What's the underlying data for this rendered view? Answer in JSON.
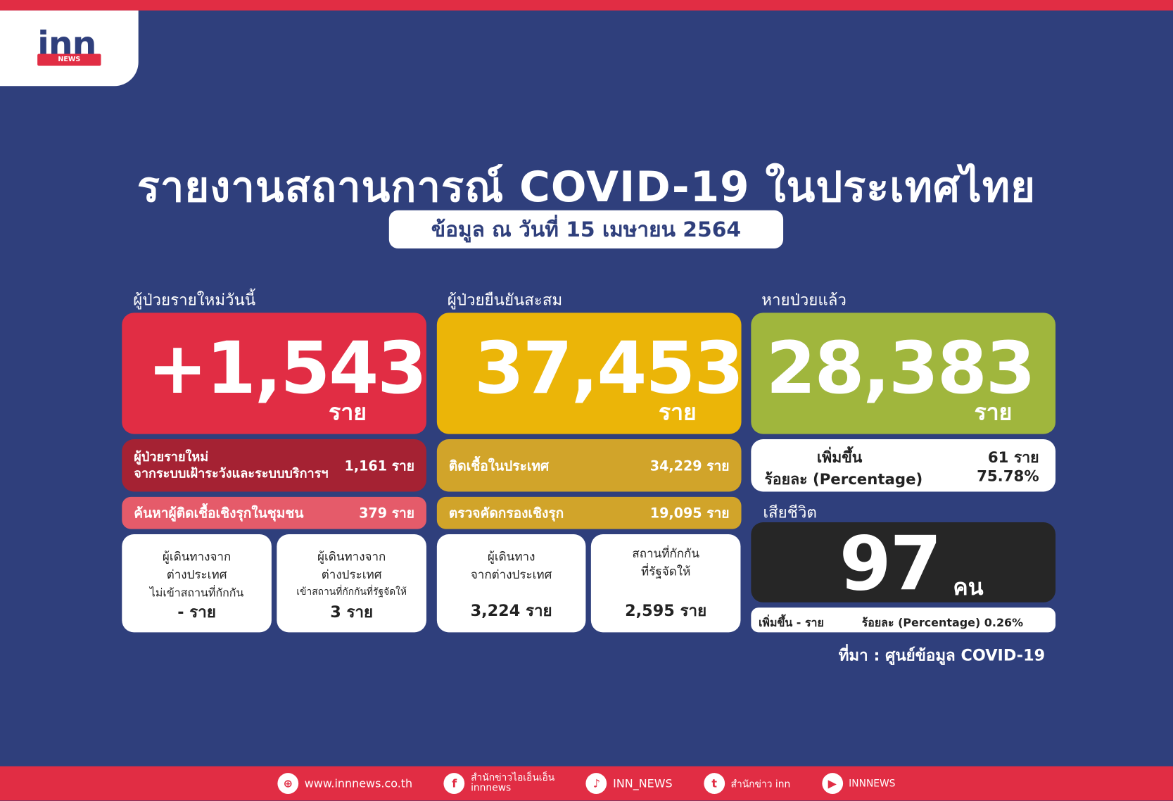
{
  "colors": {
    "background": "#2f3f7c",
    "accent_red": "#e12d44",
    "new_cases": "#e12d44",
    "cumulative": "#ebb508",
    "recovered": "#a0b63d",
    "deaths": "#262626"
  },
  "logo": {
    "text": "inn",
    "sub": "NEWS"
  },
  "title": "รายงานสถานการณ์ COVID-19 ในประเทศไทย",
  "date": "ข้อมูล ณ วันที่ 15 เมษายน 2564",
  "new_cases": {
    "label": "ผู้ป่วยรายใหม่วันนี้",
    "value": "+1,543",
    "unit": "ราย",
    "surveillance": {
      "line1": "ผู้ป่วยรายใหม่",
      "line2": "จากระบบเฝ้าระวังและระบบบริการฯ",
      "value": "1,161 ราย"
    },
    "community": {
      "label": "ค้นหาผู้ติดเชื้อเชิงรุกในชุมชน",
      "value": "379 ราย"
    },
    "abroad_no_quarantine": {
      "line1": "ผู้เดินทางจาก",
      "line2": "ต่างประเทศ",
      "line3": "ไม่เข้าสถานที่กักกัน",
      "value": "- ราย"
    },
    "abroad_quarantine": {
      "line1": "ผู้เดินทางจาก",
      "line2": "ต่างประเทศ",
      "line3": "เข้าสถานที่กักกันที่รัฐจัดให้",
      "value": "3 ราย"
    }
  },
  "cumulative": {
    "label": "ผู้ป่วยยืนยันสะสม",
    "value": "37,453",
    "unit": "ราย",
    "domestic": {
      "label": "ติดเชื้อในประเทศ",
      "value": "34,229 ราย"
    },
    "active_screening": {
      "label": "ตรวจคัดกรองเชิงรุก",
      "value": "19,095 ราย"
    },
    "travelers": {
      "line1": "ผู้เดินทาง",
      "line2": "จากต่างประเทศ",
      "value": "3,224 ราย"
    },
    "state_quarantine": {
      "line1": "สถานที่กักกัน",
      "line2": "ที่รัฐจัดให้",
      "value": "2,595 ราย"
    }
  },
  "recovered": {
    "label": "หายป่วยแล้ว",
    "value": "28,383",
    "unit": "ราย",
    "increase_label": "เพิ่มขึ้น",
    "increase_value": "61 ราย",
    "pct_label": "ร้อยละ (Percentage)",
    "pct_value": "75.78%"
  },
  "deaths": {
    "label": "เสียชีวิต",
    "value": "97",
    "unit": "คน",
    "increase": "เพิ่มขึ้น - ราย",
    "pct": "ร้อยละ (Percentage) 0.26%"
  },
  "source": "ที่มา : ศูนย์ข้อมูล COVID-19",
  "footer": [
    {
      "icon": "globe-icon",
      "glyph": "⊕",
      "text": "www.innnews.co.th"
    },
    {
      "icon": "facebook-icon",
      "glyph": "f",
      "text": "สำนักข่าวไอเอ็นเอ็น",
      "text2": "innnews"
    },
    {
      "icon": "tiktok-icon",
      "glyph": "♪",
      "text": "INN_NEWS"
    },
    {
      "icon": "twitter-icon",
      "glyph": "t",
      "text": "สำนักข่าว inn"
    },
    {
      "icon": "youtube-icon",
      "glyph": "▶",
      "text": "INNNEWS"
    }
  ]
}
